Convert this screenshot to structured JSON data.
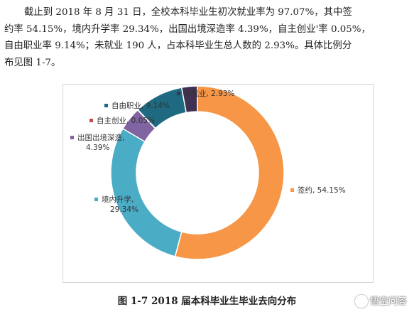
{
  "paragraph": [
    "截止到 2018 年 8 月 31 日，全校本科毕业生初次就业率为 97.07%，其中签",
    "约率 54.15%，境内升学率 29.34%，出国出境深造率 4.39%，自主创业'率 0.05%，",
    "自由职业率 9.14%；未就业 190 人，占本科毕业生总人数的 2.93%。具体比例分",
    "布见图 1-7。"
  ],
  "chart_data": {
    "type": "pie",
    "donut": true,
    "slices": [
      {
        "name": "签约",
        "value": 54.15,
        "label": "签约, 54.15%",
        "color": "#F79646"
      },
      {
        "name": "境内升学",
        "value": 29.34,
        "label": "境内升学, 29.34%",
        "color": "#4BACC6"
      },
      {
        "name": "出国出境深造",
        "value": 4.39,
        "label": "出国出境深造, 4.39%",
        "color": "#8064A2"
      },
      {
        "name": "自主创业",
        "value": 0.05,
        "label": "自主创业, 0.05%",
        "color": "#C0504D"
      },
      {
        "name": "自由职业",
        "value": 9.14,
        "label": "自由职业, 9.14%",
        "color": "#1F6A80"
      },
      {
        "name": "未就业",
        "value": 2.93,
        "label": "未就业, 2.93%",
        "color": "#403152"
      }
    ]
  },
  "caption": "图 1-7 2018 届本科毕业生毕业去向分布",
  "watermark": "悟空问答"
}
